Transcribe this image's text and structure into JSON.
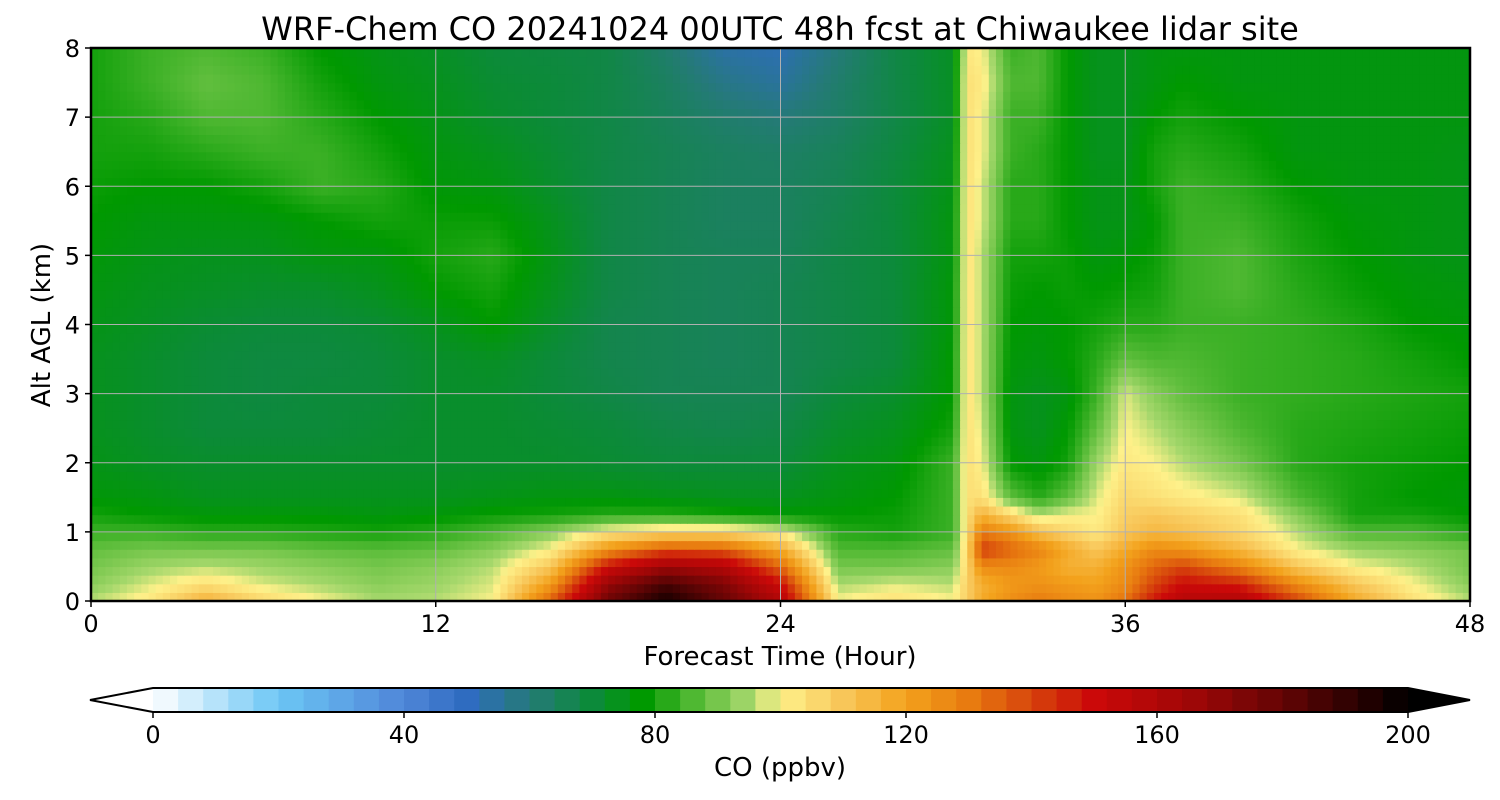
{
  "chart_data": {
    "type": "heatmap",
    "title": "WRF-Chem CO  20241024 00UTC 48h fcst at Chiwaukee lidar site",
    "xlabel": "Forecast Time (Hour)",
    "ylabel": "Alt AGL (km)",
    "xlim": [
      0,
      48
    ],
    "ylim": [
      0,
      8
    ],
    "xticks": [
      0,
      12,
      24,
      36,
      48
    ],
    "yticks": [
      0,
      1,
      2,
      3,
      4,
      5,
      6,
      7,
      8
    ],
    "grid": true,
    "colorbar": {
      "label": "CO  (ppbv)",
      "range": [
        0,
        200
      ],
      "ticks": [
        0,
        40,
        80,
        120,
        160,
        200
      ],
      "extend": "both",
      "colors": [
        {
          "value": 0,
          "color": "#ffffff"
        },
        {
          "value": 20,
          "color": "#6cc6f5"
        },
        {
          "value": 40,
          "color": "#4f86d8"
        },
        {
          "value": 50,
          "color": "#2f6cc0"
        },
        {
          "value": 60,
          "color": "#257a78"
        },
        {
          "value": 70,
          "color": "#0c8a3a"
        },
        {
          "value": 78,
          "color": "#009900"
        },
        {
          "value": 86,
          "color": "#4fb832"
        },
        {
          "value": 95,
          "color": "#a6d86c"
        },
        {
          "value": 100,
          "color": "#fef18a"
        },
        {
          "value": 110,
          "color": "#f8c659"
        },
        {
          "value": 120,
          "color": "#f3a21c"
        },
        {
          "value": 130,
          "color": "#e87b10"
        },
        {
          "value": 140,
          "color": "#d6440c"
        },
        {
          "value": 150,
          "color": "#cb0909"
        },
        {
          "value": 165,
          "color": "#a10707"
        },
        {
          "value": 180,
          "color": "#640505"
        },
        {
          "value": 195,
          "color": "#1a0000"
        },
        {
          "value": 200,
          "color": "#000000"
        }
      ]
    },
    "hours": [
      0,
      2,
      4,
      6,
      8,
      10,
      12,
      14,
      16,
      18,
      20,
      22,
      24,
      26,
      28,
      30,
      30.5,
      31,
      32,
      33,
      34,
      35,
      36,
      37,
      38,
      40,
      42,
      44,
      46,
      48
    ],
    "altitudes_km": [
      0,
      0.25,
      0.5,
      0.75,
      1.0,
      1.25,
      1.5,
      2,
      2.5,
      3,
      3.5,
      4,
      4.5,
      5,
      5.5,
      6,
      6.5,
      7,
      7.5,
      8
    ],
    "co_ppbv": [
      [
        96,
        102,
        116,
        106,
        100,
        95,
        96,
        100,
        135,
        178,
        196,
        180,
        160,
        100,
        104,
        100,
        108,
        118,
        125,
        130,
        126,
        124,
        132,
        148,
        158,
        160,
        140,
        118,
        104,
        96
      ],
      [
        92,
        98,
        104,
        98,
        95,
        92,
        94,
        98,
        122,
        168,
        186,
        174,
        150,
        95,
        98,
        96,
        108,
        116,
        122,
        124,
        122,
        120,
        126,
        140,
        150,
        146,
        126,
        110,
        100,
        92
      ],
      [
        90,
        94,
        96,
        94,
        92,
        90,
        92,
        96,
        110,
        150,
        166,
        160,
        134,
        90,
        90,
        92,
        106,
        126,
        126,
        122,
        116,
        116,
        124,
        134,
        140,
        128,
        110,
        100,
        96,
        90
      ],
      [
        88,
        90,
        90,
        90,
        88,
        87,
        88,
        92,
        100,
        124,
        138,
        136,
        118,
        86,
        86,
        88,
        106,
        142,
        134,
        128,
        118,
        110,
        118,
        126,
        124,
        114,
        100,
        94,
        92,
        90
      ],
      [
        84,
        84,
        82,
        82,
        81,
        80,
        82,
        86,
        92,
        102,
        106,
        106,
        100,
        82,
        80,
        84,
        104,
        130,
        124,
        112,
        106,
        102,
        110,
        114,
        112,
        106,
        96,
        86,
        86,
        82
      ],
      [
        80,
        78,
        77,
        77,
        77,
        76,
        77,
        79,
        80,
        82,
        82,
        80,
        78,
        78,
        79,
        84,
        104,
        116,
        106,
        96,
        100,
        100,
        108,
        110,
        108,
        104,
        92,
        80,
        80,
        78
      ],
      [
        77,
        76,
        74,
        74,
        74,
        74,
        74,
        75,
        76,
        76,
        75,
        74,
        74,
        76,
        78,
        84,
        104,
        104,
        88,
        82,
        88,
        98,
        106,
        104,
        102,
        98,
        86,
        80,
        78,
        77
      ],
      [
        75,
        73,
        72,
        72,
        72,
        72,
        72,
        72,
        72,
        71,
        70,
        70,
        70,
        74,
        76,
        84,
        104,
        100,
        78,
        76,
        80,
        94,
        102,
        100,
        96,
        90,
        82,
        80,
        79,
        78
      ],
      [
        74,
        72,
        70,
        70,
        70,
        71,
        72,
        72,
        71,
        70,
        68,
        67,
        68,
        72,
        74,
        80,
        104,
        98,
        76,
        74,
        78,
        88,
        100,
        96,
        92,
        86,
        82,
        81,
        80,
        79
      ],
      [
        74,
        72,
        70,
        69,
        70,
        70,
        72,
        72,
        70,
        68,
        66,
        66,
        66,
        70,
        72,
        78,
        104,
        96,
        76,
        74,
        76,
        84,
        98,
        92,
        88,
        84,
        83,
        82,
        81,
        80
      ],
      [
        74,
        72,
        70,
        69,
        69,
        70,
        72,
        73,
        70,
        67,
        66,
        65,
        66,
        68,
        70,
        78,
        104,
        96,
        77,
        76,
        78,
        82,
        88,
        86,
        86,
        84,
        83,
        82,
        80,
        78
      ],
      [
        75,
        73,
        71,
        70,
        70,
        71,
        74,
        78,
        72,
        67,
        66,
        65,
        66,
        68,
        70,
        77,
        104,
        96,
        78,
        77,
        78,
        80,
        82,
        82,
        84,
        84,
        83,
        81,
        78,
        77
      ],
      [
        76,
        74,
        73,
        72,
        72,
        74,
        78,
        80,
        74,
        68,
        66,
        65,
        66,
        68,
        70,
        77,
        104,
        96,
        79,
        78,
        79,
        78,
        79,
        80,
        84,
        86,
        82,
        79,
        77,
        76
      ],
      [
        77,
        75,
        74,
        74,
        76,
        76,
        80,
        82,
        75,
        68,
        66,
        65,
        65,
        68,
        70,
        76,
        104,
        96,
        80,
        80,
        79,
        76,
        77,
        79,
        84,
        86,
        81,
        78,
        76,
        75
      ],
      [
        78,
        76,
        76,
        76,
        78,
        80,
        79,
        79,
        74,
        68,
        66,
        64,
        64,
        67,
        70,
        76,
        104,
        98,
        82,
        82,
        78,
        75,
        75,
        78,
        84,
        84,
        80,
        77,
        76,
        75
      ],
      [
        79,
        78,
        78,
        80,
        84,
        82,
        77,
        76,
        72,
        68,
        66,
        64,
        64,
        66,
        70,
        75,
        104,
        98,
        82,
        82,
        78,
        75,
        75,
        80,
        84,
        82,
        78,
        76,
        76,
        75
      ],
      [
        80,
        80,
        82,
        84,
        84,
        80,
        76,
        74,
        71,
        68,
        66,
        64,
        63,
        65,
        69,
        74,
        104,
        100,
        84,
        82,
        78,
        74,
        74,
        80,
        82,
        80,
        76,
        76,
        76,
        75
      ],
      [
        80,
        82,
        86,
        86,
        82,
        78,
        75,
        72,
        70,
        68,
        65,
        62,
        60,
        63,
        68,
        73,
        104,
        100,
        84,
        84,
        78,
        74,
        74,
        78,
        80,
        78,
        76,
        76,
        76,
        76
      ],
      [
        80,
        84,
        88,
        86,
        80,
        76,
        74,
        71,
        70,
        68,
        64,
        58,
        55,
        62,
        68,
        73,
        104,
        102,
        86,
        86,
        78,
        74,
        74,
        76,
        78,
        76,
        76,
        76,
        76,
        76
      ],
      [
        80,
        84,
        86,
        84,
        78,
        75,
        73,
        70,
        69,
        68,
        62,
        54,
        52,
        60,
        68,
        73,
        102,
        100,
        84,
        86,
        78,
        74,
        74,
        76,
        76,
        76,
        76,
        76,
        76,
        76
      ]
    ]
  }
}
